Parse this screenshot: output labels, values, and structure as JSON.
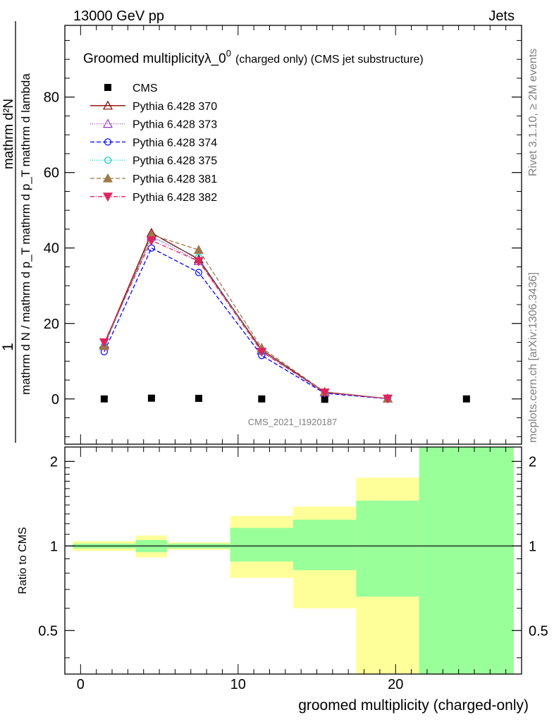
{
  "header": {
    "energy_label": "13000 GeV pp",
    "category_label": "Jets",
    "rivet_label": "Rivet 3.1.10, ≥ 2M events",
    "source_label": "mcplots.cern.ch [arXiv:1306.3436]"
  },
  "chart_data": [
    {
      "type": "line",
      "title_main": "Groomed multiplicityλ_0",
      "title_sup": "0",
      "title_tail": "(charged only) (CMS jet substructure)",
      "ylabel_top": "1",
      "ylabel_numerator": "mathrm d²N",
      "ylabel_denominator": "mathrm d N / mathrm d p_T mathrm d p_T mathrm d lambda",
      "analysis_label": "CMS_2021_I1920187",
      "xlim": [
        -1,
        28
      ],
      "ylim": [
        -12,
        99
      ],
      "yticks": [
        0,
        20,
        40,
        60,
        80
      ],
      "legend_position": "top-left",
      "series": [
        {
          "name": "CMS",
          "color": "#000000",
          "marker": "square",
          "x": [
            1.5,
            4.5,
            7.5,
            11.5,
            15.5,
            19.5,
            24.5
          ],
          "y": [
            0.0,
            0.2,
            0.15,
            0.0,
            -0.1,
            0.0,
            0.0
          ]
        },
        {
          "name": "Pythia 6.428 370",
          "color": "#8b0000",
          "marker": "triangle-open",
          "dash": "",
          "x": [
            1.5,
            4.5,
            7.5,
            11.5,
            15.5,
            19.5
          ],
          "y": [
            14.5,
            44.0,
            37.0,
            13.0,
            1.8,
            0.1
          ]
        },
        {
          "name": "Pythia 6.428 373",
          "color": "#9932cc",
          "marker": "triangle-open",
          "dash": "1,2",
          "x": [
            1.5,
            4.5,
            7.5,
            11.5,
            15.5,
            19.5
          ],
          "y": [
            14.3,
            43.0,
            36.5,
            12.8,
            1.7,
            0.1
          ]
        },
        {
          "name": "Pythia 6.428 374",
          "color": "#0000ff",
          "marker": "circle-open",
          "dash": "6,3",
          "x": [
            1.5,
            4.5,
            7.5,
            11.5,
            15.5,
            19.5
          ],
          "y": [
            12.5,
            40.0,
            33.5,
            11.5,
            1.5,
            0.05
          ]
        },
        {
          "name": "Pythia 6.428 375",
          "color": "#00ced1",
          "marker": "circle-open",
          "dash": "1,2",
          "x": [
            1.5,
            4.5,
            7.5,
            11.5,
            15.5,
            19.5
          ],
          "y": [
            14.0,
            43.0,
            37.5,
            12.5,
            1.8,
            0.1
          ]
        },
        {
          "name": "Pythia 6.428 381",
          "color": "#a0784b",
          "marker": "triangle-filled",
          "dash": "6,3",
          "x": [
            1.5,
            4.5,
            7.5,
            11.5,
            15.5,
            19.5
          ],
          "y": [
            14.0,
            43.5,
            39.5,
            13.5,
            1.9,
            0.1
          ]
        },
        {
          "name": "Pythia 6.428 382",
          "color": "#e0245e",
          "marker": "triangle-down-filled",
          "dash": "6,2,1,2",
          "x": [
            1.5,
            4.5,
            7.5,
            11.5,
            15.5,
            19.5
          ],
          "y": [
            15.0,
            42.0,
            36.5,
            12.5,
            1.7,
            0.1
          ]
        }
      ]
    },
    {
      "type": "area",
      "ylabel": "Ratio to CMS",
      "xlabel": "groomed multiplicity (charged-only)",
      "xlim": [
        -1,
        28
      ],
      "ylim": [
        0.35,
        2.25
      ],
      "yticks": [
        0.5,
        1,
        2
      ],
      "xticks": [
        0,
        10,
        20
      ],
      "reference": 1,
      "bands": [
        {
          "x0": -0.5,
          "x1": 3.5,
          "y_lo": 0.96,
          "y_hi": 1.04,
          "inner_lo": 0.98,
          "inner_hi": 1.02
        },
        {
          "x0": 3.5,
          "x1": 5.5,
          "y_lo": 0.91,
          "y_hi": 1.09,
          "inner_lo": 0.95,
          "inner_hi": 1.05
        },
        {
          "x0": 5.5,
          "x1": 9.5,
          "y_lo": 0.97,
          "y_hi": 1.03,
          "inner_lo": 0.98,
          "inner_hi": 1.02
        },
        {
          "x0": 9.5,
          "x1": 13.5,
          "y_lo": 0.77,
          "y_hi": 1.28,
          "inner_lo": 0.88,
          "inner_hi": 1.16
        },
        {
          "x0": 13.5,
          "x1": 17.5,
          "y_lo": 0.6,
          "y_hi": 1.38,
          "inner_lo": 0.82,
          "inner_hi": 1.24
        },
        {
          "x0": 17.5,
          "x1": 21.5,
          "y_lo": 0.35,
          "y_hi": 1.75,
          "inner_lo": 0.66,
          "inner_hi": 1.45
        },
        {
          "x0": 21.5,
          "x1": 27.5,
          "y_lo": 0.35,
          "y_hi": 2.25,
          "inner_lo": 0.35,
          "inner_hi": 2.25
        }
      ],
      "colors": {
        "outer_band": "#ffff99",
        "inner_band": "#99ff99"
      }
    }
  ]
}
